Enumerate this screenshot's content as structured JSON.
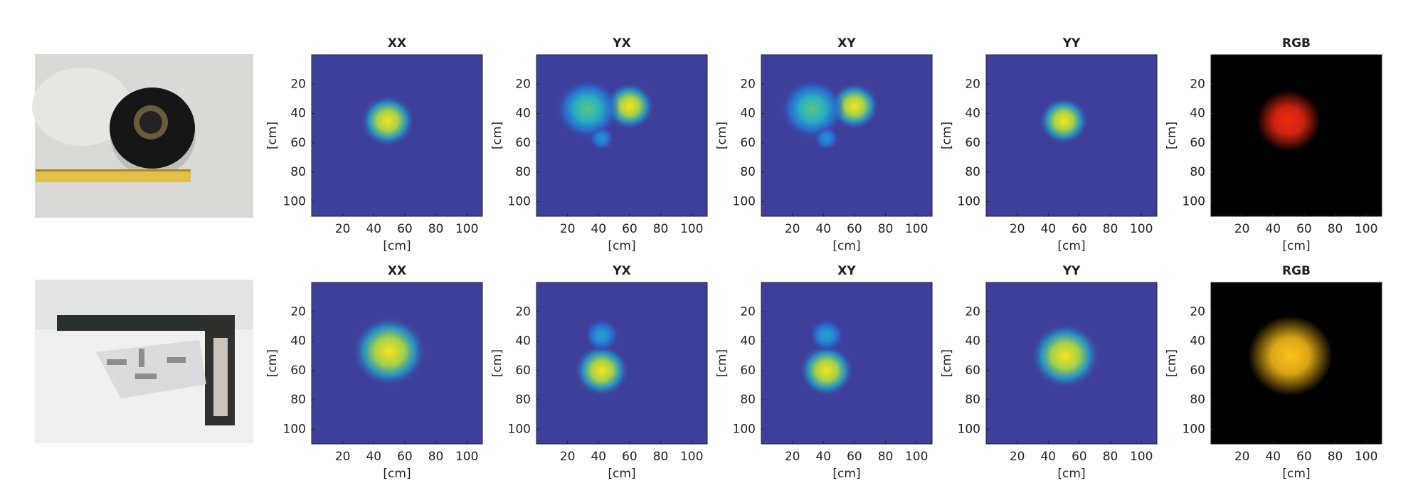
{
  "chart_data": [
    {
      "type": "heatmap",
      "title": "XX",
      "xlabel": "[cm]",
      "ylabel": "[cm]",
      "xlim": [
        0,
        110
      ],
      "ylim": [
        0,
        110
      ],
      "yreverse": true,
      "xticks": [
        20,
        40,
        60,
        80,
        100
      ],
      "yticks": [
        20,
        40,
        60,
        80,
        100
      ],
      "background": "#3e3f9b",
      "spots": [
        {
          "x": 49,
          "y": 45,
          "r": 11,
          "level": 1
        }
      ]
    },
    {
      "type": "heatmap",
      "title": "YX",
      "xlabel": "[cm]",
      "ylabel": "[cm]",
      "xlim": [
        0,
        110
      ],
      "ylim": [
        0,
        110
      ],
      "yreverse": true,
      "xticks": [
        20,
        40,
        60,
        80,
        100
      ],
      "yticks": [
        20,
        40,
        60,
        80,
        100
      ],
      "background": "#3e3f9b",
      "spots": [
        {
          "x": 60,
          "y": 35,
          "r": 10,
          "level": 1
        },
        {
          "x": 33,
          "y": 37,
          "r": 13,
          "level": 0.65
        },
        {
          "x": 42,
          "y": 57,
          "r": 5,
          "level": 0.4
        }
      ]
    },
    {
      "type": "heatmap",
      "title": "XY",
      "xlabel": "[cm]",
      "ylabel": "[cm]",
      "xlim": [
        0,
        110
      ],
      "ylim": [
        0,
        110
      ],
      "yreverse": true,
      "xticks": [
        20,
        40,
        60,
        80,
        100
      ],
      "yticks": [
        20,
        40,
        60,
        80,
        100
      ],
      "background": "#3e3f9b",
      "spots": [
        {
          "x": 60,
          "y": 35,
          "r": 10,
          "level": 1
        },
        {
          "x": 33,
          "y": 37,
          "r": 13,
          "level": 0.65
        },
        {
          "x": 42,
          "y": 57,
          "r": 5,
          "level": 0.4
        }
      ]
    },
    {
      "type": "heatmap",
      "title": "YY",
      "xlabel": "[cm]",
      "ylabel": "[cm]",
      "xlim": [
        0,
        110
      ],
      "ylim": [
        0,
        110
      ],
      "yreverse": true,
      "xticks": [
        20,
        40,
        60,
        80,
        100
      ],
      "yticks": [
        20,
        40,
        60,
        80,
        100
      ],
      "background": "#3e3f9b",
      "spots": [
        {
          "x": 50,
          "y": 45,
          "r": 10,
          "level": 1
        }
      ]
    },
    {
      "type": "rgb",
      "title": "RGB",
      "xlabel": "[cm]",
      "ylabel": "[cm]",
      "xlim": [
        0,
        110
      ],
      "ylim": [
        0,
        110
      ],
      "yreverse": true,
      "xticks": [
        20,
        40,
        60,
        80,
        100
      ],
      "yticks": [
        20,
        40,
        60,
        80,
        100
      ],
      "background": "#000000",
      "spots": [
        {
          "x": 50,
          "y": 45,
          "r": 13,
          "color": "#f02a12"
        }
      ]
    },
    {
      "type": "heatmap",
      "title": "XX",
      "xlabel": "[cm]",
      "ylabel": "[cm]",
      "xlim": [
        0,
        110
      ],
      "ylim": [
        0,
        110
      ],
      "yreverse": true,
      "xticks": [
        20,
        40,
        60,
        80,
        100
      ],
      "yticks": [
        20,
        40,
        60,
        80,
        100
      ],
      "background": "#3e3f9b",
      "spots": [
        {
          "x": 50,
          "y": 47,
          "r": 15,
          "level": 1
        }
      ]
    },
    {
      "type": "heatmap",
      "title": "YX",
      "xlabel": "[cm]",
      "ylabel": "[cm]",
      "xlim": [
        0,
        110
      ],
      "ylim": [
        0,
        110
      ],
      "yreverse": true,
      "xticks": [
        20,
        40,
        60,
        80,
        100
      ],
      "yticks": [
        20,
        40,
        60,
        80,
        100
      ],
      "background": "#3e3f9b",
      "spots": [
        {
          "x": 42,
          "y": 60,
          "r": 11,
          "level": 1
        },
        {
          "x": 42,
          "y": 36,
          "r": 7,
          "level": 0.45
        }
      ]
    },
    {
      "type": "heatmap",
      "title": "XY",
      "xlabel": "[cm]",
      "ylabel": "[cm]",
      "xlim": [
        0,
        110
      ],
      "ylim": [
        0,
        110
      ],
      "yreverse": true,
      "xticks": [
        20,
        40,
        60,
        80,
        100
      ],
      "yticks": [
        20,
        40,
        60,
        80,
        100
      ],
      "background": "#3e3f9b",
      "spots": [
        {
          "x": 42,
          "y": 60,
          "r": 11,
          "level": 1
        },
        {
          "x": 42,
          "y": 36,
          "r": 7,
          "level": 0.45
        }
      ]
    },
    {
      "type": "heatmap",
      "title": "YY",
      "xlabel": "[cm]",
      "ylabel": "[cm]",
      "xlim": [
        0,
        110
      ],
      "ylim": [
        0,
        110
      ],
      "yreverse": true,
      "xticks": [
        20,
        40,
        60,
        80,
        100
      ],
      "yticks": [
        20,
        40,
        60,
        80,
        100
      ],
      "background": "#3e3f9b",
      "spots": [
        {
          "x": 51,
          "y": 50,
          "r": 14,
          "level": 1
        }
      ]
    },
    {
      "type": "rgb",
      "title": "RGB",
      "xlabel": "[cm]",
      "ylabel": "[cm]",
      "xlim": [
        0,
        110
      ],
      "ylim": [
        0,
        110
      ],
      "yreverse": true,
      "xticks": [
        20,
        40,
        60,
        80,
        100
      ],
      "yticks": [
        20,
        40,
        60,
        80,
        100
      ],
      "background": "#000000",
      "spots": [
        {
          "x": 51,
          "y": 50,
          "r": 17,
          "color": "#ffc21a"
        }
      ]
    }
  ]
}
